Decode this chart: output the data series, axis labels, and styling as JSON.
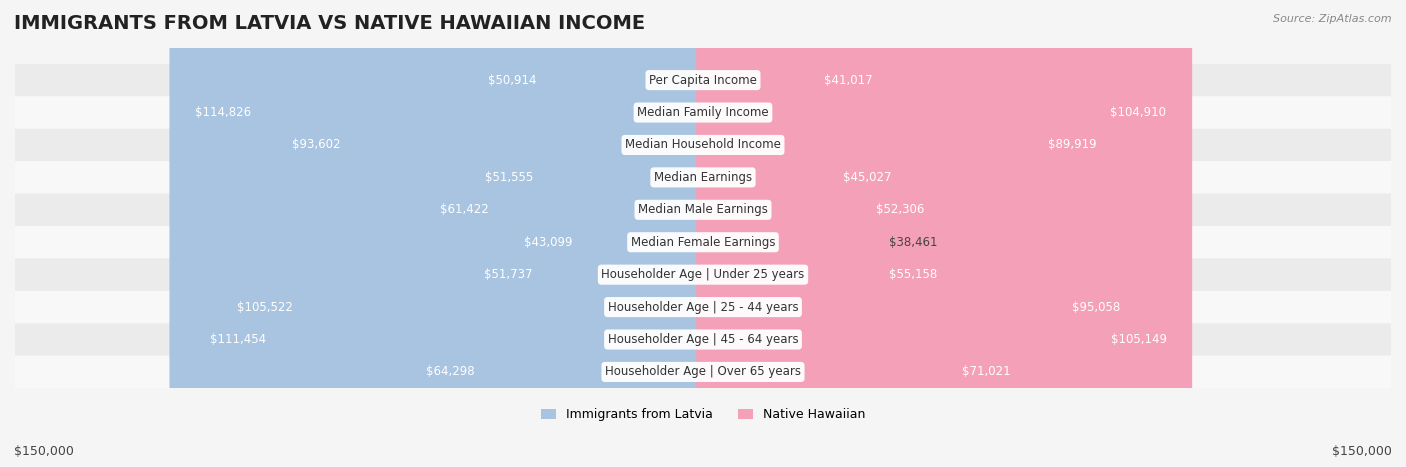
{
  "title": "IMMIGRANTS FROM LATVIA VS NATIVE HAWAIIAN INCOME",
  "source": "Source: ZipAtlas.com",
  "categories": [
    "Per Capita Income",
    "Median Family Income",
    "Median Household Income",
    "Median Earnings",
    "Median Male Earnings",
    "Median Female Earnings",
    "Householder Age | Under 25 years",
    "Householder Age | 25 - 44 years",
    "Householder Age | 45 - 64 years",
    "Householder Age | Over 65 years"
  ],
  "latvia_values": [
    50914,
    114826,
    93602,
    51555,
    61422,
    43099,
    51737,
    105522,
    111454,
    64298
  ],
  "hawaiian_values": [
    41017,
    104910,
    89919,
    45027,
    52306,
    38461,
    55158,
    95058,
    105149,
    71021
  ],
  "latvia_labels": [
    "$50,914",
    "$114,826",
    "$93,602",
    "$51,555",
    "$61,422",
    "$43,099",
    "$51,737",
    "$105,522",
    "$111,454",
    "$64,298"
  ],
  "hawaiian_labels": [
    "$41,017",
    "$104,910",
    "$89,919",
    "$45,027",
    "$52,306",
    "$38,461",
    "$55,158",
    "$95,058",
    "$105,149",
    "$71,021"
  ],
  "latvia_color": "#a8c4e0",
  "hawaiian_color": "#f4a0b8",
  "latvia_color_dark": "#7bafd4",
  "hawaiian_color_dark": "#f080a0",
  "max_value": 150000,
  "legend_latvia": "Immigrants from Latvia",
  "legend_hawaiian": "Native Hawaiian",
  "bg_color": "#f5f5f5",
  "row_bg_color": "#ffffff",
  "row_alt_bg_color": "#f0f0f0",
  "title_fontsize": 14,
  "label_fontsize": 8.5,
  "category_fontsize": 8.5,
  "axis_label": "$150,000"
}
